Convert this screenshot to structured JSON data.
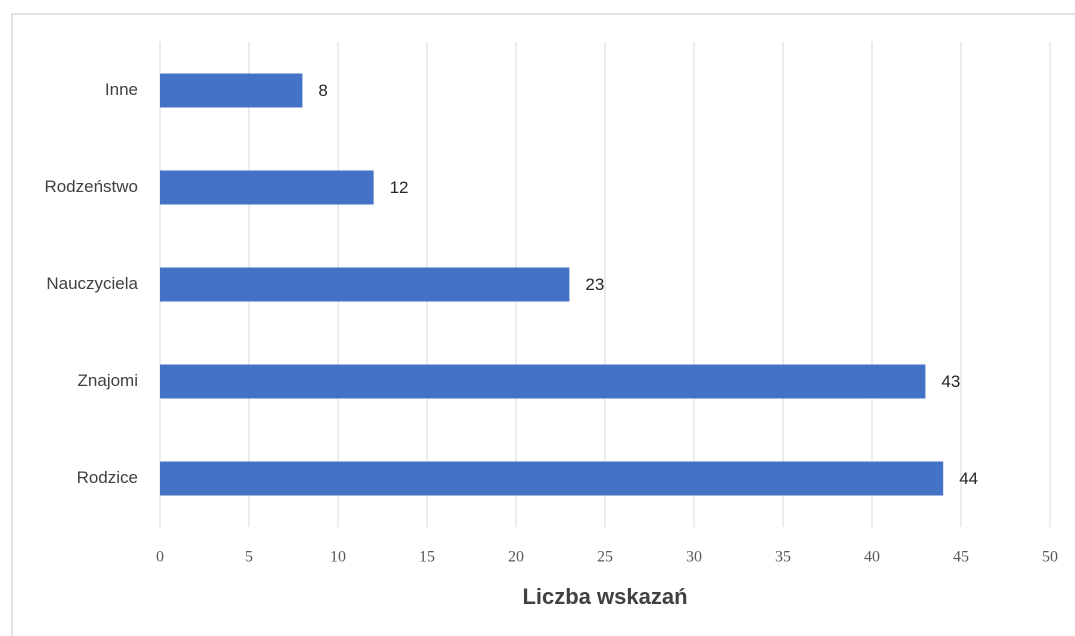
{
  "chart_data": {
    "type": "bar",
    "orientation": "horizontal",
    "x_label": "Liczba wskazań",
    "categories": [
      "Inne",
      "Rodzeństwo",
      "Nauczyciela",
      "Znajomi",
      "Rodzice"
    ],
    "values": [
      8,
      12,
      23,
      43,
      44
    ],
    "color": "#4472c4",
    "xlim": [
      0,
      50
    ],
    "xticks": [
      0,
      5,
      10,
      15,
      20,
      25,
      30,
      35,
      40,
      45,
      50
    ],
    "grid": true
  }
}
